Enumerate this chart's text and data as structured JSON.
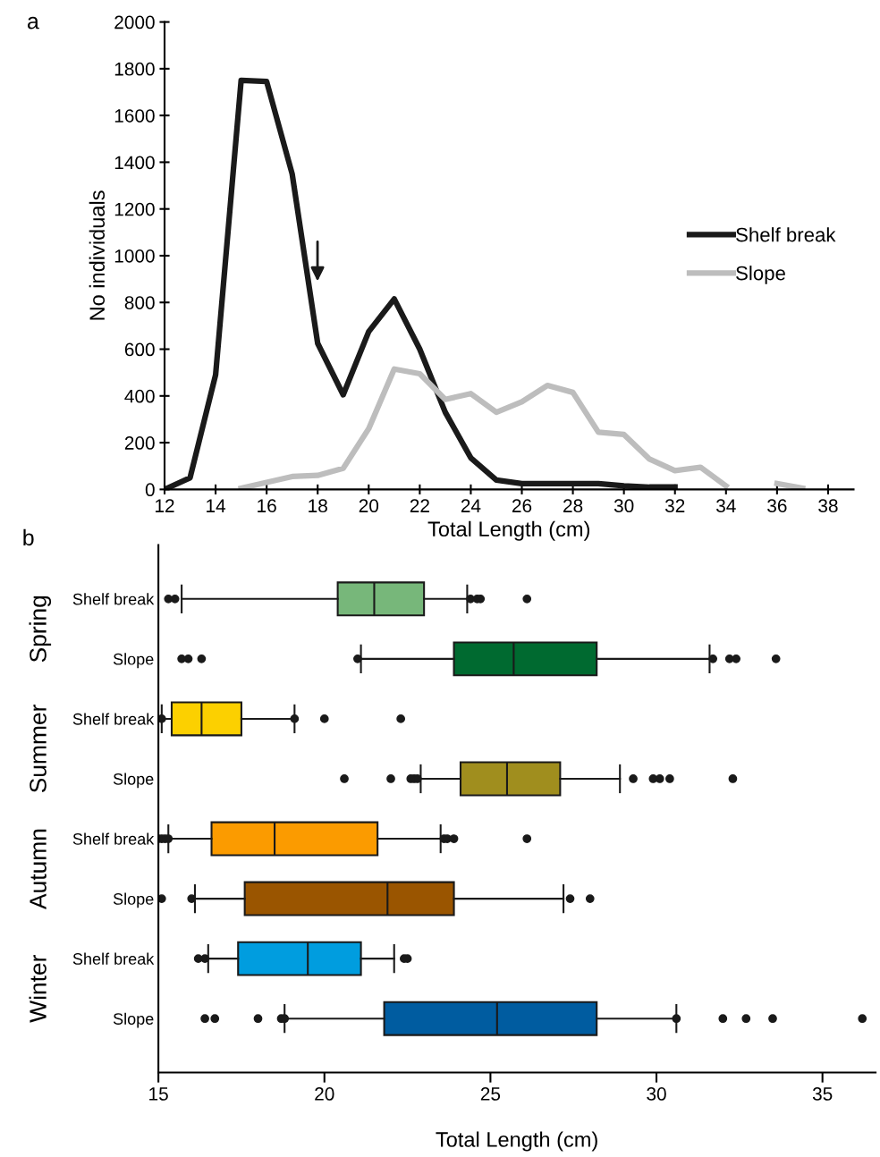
{
  "chart_data": [
    {
      "type": "line",
      "title": "a",
      "xlabel": "Total Length (cm)",
      "ylabel": "No individuals",
      "xlim": [
        12,
        39
      ],
      "xticks": [
        12,
        14,
        16,
        18,
        20,
        22,
        24,
        26,
        28,
        30,
        32,
        34,
        36,
        38
      ],
      "ylim": [
        0,
        2000
      ],
      "yticks": [
        0,
        200,
        400,
        600,
        800,
        1000,
        1200,
        1400,
        1600,
        1800,
        2000
      ],
      "grid": false,
      "legend": "right",
      "marker": "none",
      "line_style": "solid",
      "series": [
        {
          "name": "Shelf break",
          "color": "#1a1a1a",
          "x": [
            12,
            13,
            14,
            15,
            16,
            17,
            18,
            19,
            20,
            21,
            22,
            23,
            24,
            25,
            26,
            27,
            28,
            29,
            30,
            31,
            32
          ],
          "values": [
            0,
            50,
            490,
            1750,
            1745,
            1350,
            625,
            405,
            675,
            815,
            600,
            330,
            135,
            40,
            25,
            25,
            25,
            25,
            15,
            10,
            10
          ]
        },
        {
          "name": "Slope",
          "color": "#bdbdbd",
          "x": [
            15,
            16,
            17,
            18,
            19,
            20,
            21,
            22,
            23,
            24,
            25,
            26,
            27,
            28,
            29,
            30,
            31,
            32,
            33,
            34,
            35,
            36,
            37
          ],
          "values": [
            5,
            30,
            55,
            60,
            90,
            260,
            515,
            495,
            385,
            410,
            330,
            375,
            445,
            415,
            245,
            235,
            130,
            80,
            95,
            15,
            null,
            25,
            5
          ]
        }
      ]
    },
    {
      "type": "box",
      "title": "b",
      "xlabel": "Total Length (cm)",
      "orientation": "horizontal",
      "xlim": [
        15,
        36.6
      ],
      "xticks": [
        15,
        20,
        25,
        30,
        35
      ],
      "grid": false,
      "categories": [
        "Shelf break",
        "Slope",
        "Shelf break",
        "Slope",
        "Shelf break",
        "Slope",
        "Shelf break",
        "Slope"
      ],
      "annotations": [
        "Spring",
        "Summer",
        "Autumn",
        "Winter"
      ],
      "colors": [
        "#77b77a",
        "#006a30",
        "#fcd000",
        "#a08e1e",
        "#fb9b00",
        "#9a5500",
        "#009ddf",
        "#005ca0"
      ],
      "boxes": [
        {
          "low": 15.7,
          "q1": 20.4,
          "median": 21.5,
          "q3": 23.0,
          "high": 24.3,
          "outliers": [
            15.3,
            15.5,
            24.4,
            24.6,
            24.7,
            26.1
          ]
        },
        {
          "low": 21.1,
          "q1": 23.9,
          "median": 25.7,
          "q3": 28.2,
          "high": 31.6,
          "outliers": [
            15.7,
            15.9,
            16.3,
            21.0,
            31.7,
            32.2,
            32.4,
            33.6
          ]
        },
        {
          "low": 15.1,
          "q1": 15.4,
          "median": 16.3,
          "q3": 17.5,
          "high": 19.1,
          "outliers": [
            15.1,
            19.1,
            20.0,
            22.3
          ]
        },
        {
          "low": 22.9,
          "q1": 24.1,
          "median": 25.5,
          "q3": 27.1,
          "high": 28.9,
          "outliers": [
            20.6,
            22.0,
            22.6,
            22.7,
            22.8,
            29.3,
            29.9,
            30.1,
            30.4,
            32.3
          ]
        },
        {
          "low": 15.3,
          "q1": 16.6,
          "median": 18.5,
          "q3": 21.6,
          "high": 23.5,
          "outliers": [
            15.0,
            15.1,
            15.2,
            15.3,
            23.6,
            23.7,
            23.9,
            26.1
          ]
        },
        {
          "low": 16.1,
          "q1": 17.6,
          "median": 21.9,
          "q3": 23.9,
          "high": 27.2,
          "outliers": [
            15.1,
            16.0,
            27.4,
            28.0
          ]
        },
        {
          "low": 16.5,
          "q1": 17.4,
          "median": 19.5,
          "q3": 21.1,
          "high": 22.1,
          "outliers": [
            16.2,
            16.4,
            22.4,
            22.5
          ]
        },
        {
          "low": 18.8,
          "q1": 21.8,
          "median": 25.2,
          "q3": 28.2,
          "high": 30.6,
          "outliers": [
            16.4,
            16.7,
            18.0,
            18.7,
            18.8,
            30.6,
            32.0,
            32.7,
            33.5,
            36.2
          ]
        }
      ]
    }
  ]
}
